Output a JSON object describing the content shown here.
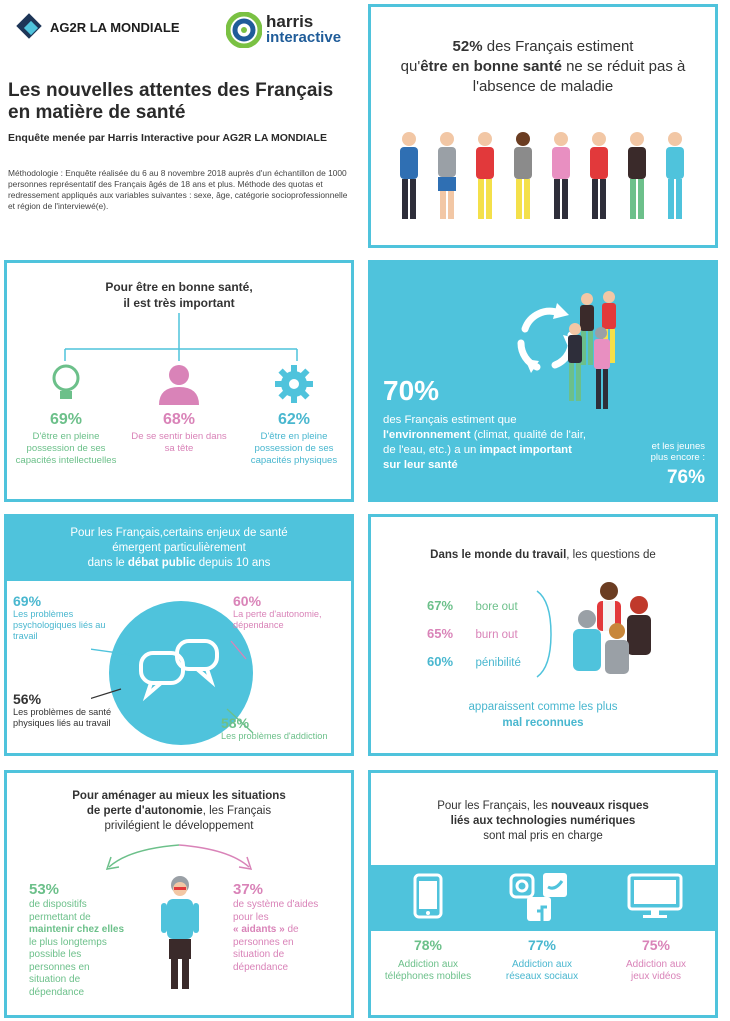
{
  "header": {
    "logo_ag2r": "AG2R LA MONDIALE",
    "logo_harris_1": "harris",
    "logo_harris_2": "interactive",
    "title_1": "Les nouvelles attentes des Français",
    "title_2": "en matière de santé",
    "subtitle": "Enquête menée par Harris Interactive pour AG2R LA MONDIALE",
    "methodology": "Méthodologie : Enquête réalisée du 6 au 8 novembre 2018 auprès d'un échantillon de 1000 personnes représentatif des Français âgés de 18 ans et plus. Méthode des quotas et redressement appliqués aux variables suivantes : sexe, âge, catégorie socioprofessionnelle et région de l'interviewé(e)."
  },
  "box1": {
    "pct": "52%",
    "t1": " des Français estiment",
    "t2": "qu'",
    "t3": "être en bonne santé",
    "t4": " ne se réduit pas à",
    "t5": "l'absence de maladie"
  },
  "box2": {
    "title_1": "Pour être en bonne santé,",
    "title_2": "il est très important",
    "items": [
      {
        "pct": "69%",
        "l1": "D'être en pleine",
        "l2": "possession de ses",
        "l3": "capacités intellectuelles",
        "icon": "lightbulb-icon"
      },
      {
        "pct": "68%",
        "l1": "De se sentir bien dans",
        "l2": "sa tête",
        "l3": "",
        "icon": "person-icon"
      },
      {
        "pct": "62%",
        "l1": "D'être en pleine",
        "l2": "possession de ses",
        "l3": "capacités physiques",
        "icon": "gear-icon"
      }
    ]
  },
  "box3": {
    "pct": "70%",
    "t1": "des Français estiment que",
    "t2": "l'environnement",
    "t3": " (climat, qualité de l'air,",
    "t4": "de l'eau, etc.) a un ",
    "t5": "impact  important",
    "t6": "sur leur santé",
    "young_1": "et les jeunes",
    "young_2": "plus encore :",
    "young_pct": "76%"
  },
  "box4": {
    "title_1": "Pour les Français,certains enjeux de santé",
    "title_2": "émergent particulièrement",
    "title_3a": "dans le ",
    "title_3b": "débat public",
    "title_3c": " depuis 10 ans",
    "items": [
      {
        "pct": "69%",
        "l1": "Les problèmes",
        "l2": "psychologiques liés au",
        "l3": "travail"
      },
      {
        "pct": "60%",
        "l1": "La perte d'autonomie,",
        "l2": "dépendance",
        "l3": ""
      },
      {
        "pct": "56%",
        "l1": "Les problèmes de santé",
        "l2": "physiques liés au travail",
        "l3": ""
      },
      {
        "pct": "58%",
        "l1": "Les problèmes d'addiction",
        "l2": "",
        "l3": ""
      }
    ]
  },
  "box5": {
    "title_a": "Dans le monde du travail",
    "title_b": ", les questions de",
    "rows": [
      {
        "pct": "67%",
        "label": "bore out"
      },
      {
        "pct": "65%",
        "label": "burn out"
      },
      {
        "pct": "60%",
        "label": "pénibilité"
      }
    ],
    "foot_1": "apparaissent comme les plus",
    "foot_2": "mal reconnues"
  },
  "box6": {
    "title_1": "Pour aménager au mieux les situations",
    "title_2a": "de perte d'autonomie",
    "title_2b": ", les Français",
    "title_3": "privilégient le développement",
    "left_pct": "53%",
    "left_lines": [
      "de dispositifs",
      "permettant de"
    ],
    "left_bold_1": "maintenir chez elles",
    "left_lines2": [
      "le plus longtemps",
      "possible les",
      "personnes en",
      "situation de",
      "dépendance"
    ],
    "right_pct": "37%",
    "right_lines": [
      "de système d'aides",
      "pour les"
    ],
    "right_bold": "« aidants »",
    "right_after": " de",
    "right_lines2": [
      "personnes en",
      "situation de",
      "dépendance"
    ]
  },
  "box7": {
    "title_1": "Pour les Français, les ",
    "title_1b": "nouveaux risques",
    "title_2": "liés aux technologies numériques",
    "title_3": "sont mal pris en charge",
    "items": [
      {
        "pct": "78%",
        "l1": "Addiction aux",
        "l2": "téléphones mobiles",
        "icon": "smartphone-icon"
      },
      {
        "pct": "77%",
        "l1": "Addiction aux",
        "l2": "réseaux sociaux",
        "icon": "social-media-icon"
      },
      {
        "pct": "75%",
        "l1": "Addiction aux",
        "l2": "jeux vidéos",
        "icon": "monitor-icon"
      }
    ]
  },
  "colors": {
    "teal": "#4fc3dc",
    "green": "#6cc08a",
    "pink": "#d983b8",
    "dark": "#333333"
  }
}
